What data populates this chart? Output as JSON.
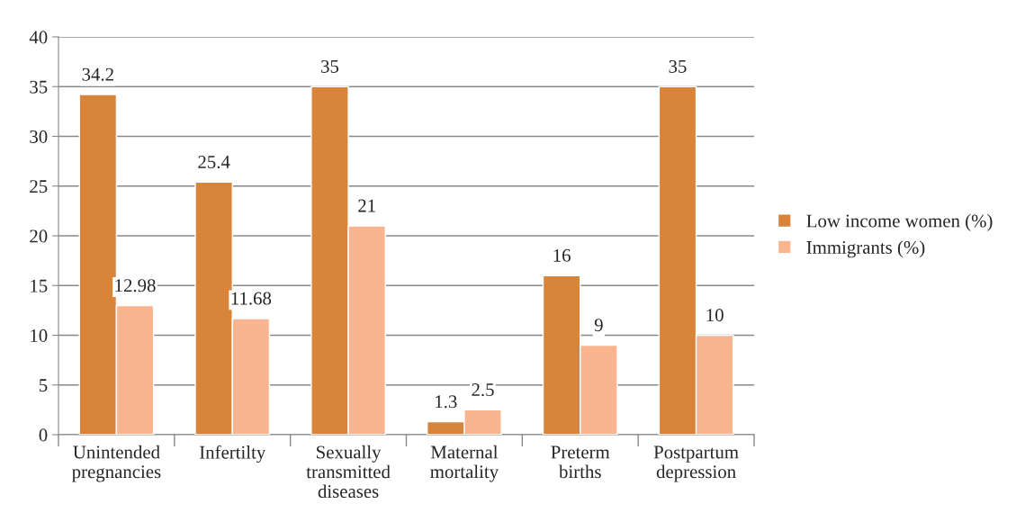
{
  "chart_data": {
    "type": "bar",
    "categories": [
      "Unintended\npregnancies",
      "Infertilty",
      "Sexually\ntransmitted\ndiseases",
      "Maternal\nmortality",
      "Preterm\nbirths",
      "Postpartum\ndepression"
    ],
    "series": [
      {
        "name": "Low income women (%)",
        "color": "#d9843b",
        "values": [
          34.2,
          25.4,
          35,
          1.3,
          16,
          35
        ]
      },
      {
        "name": "Immigrants (%)",
        "color": "#f9b590",
        "values": [
          12.98,
          11.68,
          21,
          2.5,
          9,
          10
        ]
      }
    ],
    "ylim": [
      0,
      40
    ],
    "yticks": [
      0,
      5,
      10,
      15,
      20,
      25,
      30,
      35,
      40
    ],
    "grid": "y",
    "legend": "right",
    "data_labels": true
  }
}
